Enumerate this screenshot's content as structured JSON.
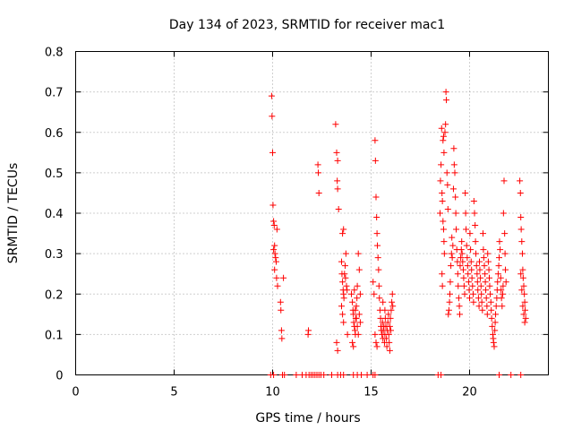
{
  "chart_data": {
    "type": "scatter",
    "title": "Day 134 of 2023, SRMTID for receiver mac1",
    "xlabel": "GPS time / hours",
    "ylabel": "SRMTID / TECUs",
    "xlim": [
      0,
      24
    ],
    "ylim": [
      0,
      0.8
    ],
    "xticks": [
      0,
      5,
      10,
      15,
      20
    ],
    "xtick_labels": [
      "0",
      "5",
      "10",
      "15",
      "20"
    ],
    "yticks": [
      0,
      0.1,
      0.2,
      0.3,
      0.4,
      0.5,
      0.6,
      0.7,
      0.8
    ],
    "ytick_labels": [
      "0",
      "0.1",
      "0.2",
      "0.3",
      "0.4",
      "0.5",
      "0.6",
      "0.7",
      "0.8"
    ],
    "grid": true,
    "marker": "+",
    "color": "#ff0000",
    "series": [
      {
        "name": "SRMTID",
        "points": [
          [
            9.95,
            0.69
          ],
          [
            9.97,
            0.64
          ],
          [
            10.0,
            0.55
          ],
          [
            10.02,
            0.42
          ],
          [
            10.05,
            0.38
          ],
          [
            10.08,
            0.37
          ],
          [
            10.1,
            0.32
          ],
          [
            10.12,
            0.3
          ],
          [
            10.15,
            0.29
          ],
          [
            10.18,
            0.28
          ],
          [
            10.05,
            0.31
          ],
          [
            10.1,
            0.26
          ],
          [
            10.2,
            0.24
          ],
          [
            10.22,
            0.36
          ],
          [
            10.25,
            0.22
          ],
          [
            10.4,
            0.18
          ],
          [
            10.42,
            0.16
          ],
          [
            10.45,
            0.11
          ],
          [
            10.47,
            0.09
          ],
          [
            10.55,
            0.24
          ],
          [
            11.8,
            0.1
          ],
          [
            11.82,
            0.11
          ],
          [
            12.3,
            0.52
          ],
          [
            12.32,
            0.5
          ],
          [
            12.35,
            0.45
          ],
          [
            13.2,
            0.62
          ],
          [
            13.25,
            0.55
          ],
          [
            13.3,
            0.53
          ],
          [
            13.28,
            0.48
          ],
          [
            13.3,
            0.46
          ],
          [
            13.35,
            0.41
          ],
          [
            13.25,
            0.08
          ],
          [
            13.3,
            0.06
          ],
          [
            13.55,
            0.35
          ],
          [
            13.6,
            0.36
          ],
          [
            13.5,
            0.28
          ],
          [
            13.52,
            0.25
          ],
          [
            13.55,
            0.23
          ],
          [
            13.58,
            0.21
          ],
          [
            13.6,
            0.2
          ],
          [
            13.62,
            0.19
          ],
          [
            13.65,
            0.25
          ],
          [
            13.68,
            0.27
          ],
          [
            13.5,
            0.17
          ],
          [
            13.55,
            0.15
          ],
          [
            13.6,
            0.13
          ],
          [
            13.7,
            0.24
          ],
          [
            13.72,
            0.3
          ],
          [
            13.75,
            0.22
          ],
          [
            13.78,
            0.21
          ],
          [
            13.8,
            0.1
          ],
          [
            14.0,
            0.2
          ],
          [
            14.05,
            0.18
          ],
          [
            14.08,
            0.16
          ],
          [
            14.1,
            0.15
          ],
          [
            14.12,
            0.13
          ],
          [
            14.15,
            0.12
          ],
          [
            14.18,
            0.11
          ],
          [
            14.2,
            0.1
          ],
          [
            14.22,
            0.14
          ],
          [
            14.25,
            0.17
          ],
          [
            14.28,
            0.19
          ],
          [
            14.3,
            0.22
          ],
          [
            14.05,
            0.08
          ],
          [
            14.1,
            0.07
          ],
          [
            14.15,
            0.21
          ],
          [
            14.2,
            0.16
          ],
          [
            14.25,
            0.14
          ],
          [
            14.3,
            0.12
          ],
          [
            14.35,
            0.1
          ],
          [
            14.35,
            0.3
          ],
          [
            14.4,
            0.26
          ],
          [
            14.4,
            0.15
          ],
          [
            14.45,
            0.13
          ],
          [
            14.45,
            0.2
          ],
          [
            15.1,
            0.23
          ],
          [
            15.15,
            0.2
          ],
          [
            15.2,
            0.58
          ],
          [
            15.22,
            0.53
          ],
          [
            15.25,
            0.44
          ],
          [
            15.28,
            0.39
          ],
          [
            15.3,
            0.35
          ],
          [
            15.32,
            0.32
          ],
          [
            15.35,
            0.29
          ],
          [
            15.38,
            0.26
          ],
          [
            15.4,
            0.22
          ],
          [
            15.42,
            0.19
          ],
          [
            15.45,
            0.16
          ],
          [
            15.48,
            0.14
          ],
          [
            15.2,
            0.1
          ],
          [
            15.25,
            0.08
          ],
          [
            15.3,
            0.07
          ],
          [
            15.5,
            0.12
          ],
          [
            15.52,
            0.11
          ],
          [
            15.55,
            0.1
          ],
          [
            15.58,
            0.13
          ],
          [
            15.6,
            0.09
          ],
          [
            15.62,
            0.11
          ],
          [
            15.65,
            0.12
          ],
          [
            15.68,
            0.08
          ],
          [
            15.7,
            0.1
          ],
          [
            15.72,
            0.14
          ],
          [
            15.75,
            0.12
          ],
          [
            15.78,
            0.09
          ],
          [
            15.8,
            0.07
          ],
          [
            15.82,
            0.11
          ],
          [
            15.85,
            0.13
          ],
          [
            15.88,
            0.15
          ],
          [
            15.9,
            0.1
          ],
          [
            15.92,
            0.08
          ],
          [
            15.95,
            0.12
          ],
          [
            15.98,
            0.14
          ],
          [
            16.0,
            0.11
          ],
          [
            16.02,
            0.16
          ],
          [
            16.05,
            0.18
          ],
          [
            16.08,
            0.2
          ],
          [
            16.1,
            0.17
          ],
          [
            15.95,
            0.06
          ],
          [
            15.7,
            0.16
          ],
          [
            15.6,
            0.18
          ],
          [
            18.5,
            0.4
          ],
          [
            18.52,
            0.48
          ],
          [
            18.55,
            0.52
          ],
          [
            18.58,
            0.61
          ],
          [
            18.6,
            0.45
          ],
          [
            18.62,
            0.43
          ],
          [
            18.65,
            0.38
          ],
          [
            18.68,
            0.36
          ],
          [
            18.7,
            0.33
          ],
          [
            18.72,
            0.3
          ],
          [
            18.6,
            0.25
          ],
          [
            18.62,
            0.22
          ],
          [
            18.65,
            0.58
          ],
          [
            18.68,
            0.59
          ],
          [
            18.7,
            0.55
          ],
          [
            18.75,
            0.6
          ],
          [
            18.78,
            0.62
          ],
          [
            18.8,
            0.7
          ],
          [
            18.82,
            0.68
          ],
          [
            18.85,
            0.5
          ],
          [
            18.88,
            0.47
          ],
          [
            18.9,
            0.41
          ],
          [
            18.92,
            0.15
          ],
          [
            18.95,
            0.16
          ],
          [
            18.98,
            0.18
          ],
          [
            19.0,
            0.2
          ],
          [
            19.02,
            0.23
          ],
          [
            19.05,
            0.27
          ],
          [
            19.08,
            0.3
          ],
          [
            19.1,
            0.34
          ],
          [
            19.12,
            0.29
          ],
          [
            19.15,
            0.32
          ],
          [
            19.18,
            0.46
          ],
          [
            19.2,
            0.56
          ],
          [
            19.22,
            0.52
          ],
          [
            19.25,
            0.5
          ],
          [
            19.28,
            0.44
          ],
          [
            19.3,
            0.4
          ],
          [
            19.32,
            0.36
          ],
          [
            19.35,
            0.31
          ],
          [
            19.38,
            0.28
          ],
          [
            19.4,
            0.25
          ],
          [
            19.42,
            0.22
          ],
          [
            19.45,
            0.19
          ],
          [
            19.48,
            0.17
          ],
          [
            19.5,
            0.15
          ],
          [
            19.52,
            0.27
          ],
          [
            19.55,
            0.29
          ],
          [
            19.58,
            0.31
          ],
          [
            19.6,
            0.33
          ],
          [
            19.62,
            0.3
          ],
          [
            19.65,
            0.28
          ],
          [
            19.68,
            0.26
          ],
          [
            19.7,
            0.24
          ],
          [
            19.72,
            0.22
          ],
          [
            19.75,
            0.2
          ],
          [
            19.78,
            0.45
          ],
          [
            19.8,
            0.4
          ],
          [
            19.82,
            0.36
          ],
          [
            19.85,
            0.32
          ],
          [
            19.88,
            0.29
          ],
          [
            19.9,
            0.27
          ],
          [
            19.92,
            0.25
          ],
          [
            19.95,
            0.23
          ],
          [
            19.98,
            0.21
          ],
          [
            20.0,
            0.19
          ],
          [
            20.02,
            0.35
          ],
          [
            20.05,
            0.31
          ],
          [
            20.08,
            0.28
          ],
          [
            20.1,
            0.26
          ],
          [
            20.12,
            0.24
          ],
          [
            20.15,
            0.22
          ],
          [
            20.18,
            0.2
          ],
          [
            20.2,
            0.18
          ],
          [
            20.22,
            0.43
          ],
          [
            20.25,
            0.4
          ],
          [
            20.28,
            0.37
          ],
          [
            20.3,
            0.33
          ],
          [
            20.32,
            0.3
          ],
          [
            20.35,
            0.27
          ],
          [
            20.38,
            0.25
          ],
          [
            20.4,
            0.23
          ],
          [
            20.42,
            0.21
          ],
          [
            20.45,
            0.19
          ],
          [
            20.48,
            0.17
          ],
          [
            20.5,
            0.28
          ],
          [
            20.52,
            0.26
          ],
          [
            20.55,
            0.24
          ],
          [
            20.58,
            0.22
          ],
          [
            20.6,
            0.2
          ],
          [
            20.62,
            0.18
          ],
          [
            20.65,
            0.16
          ],
          [
            20.68,
            0.35
          ],
          [
            20.7,
            0.31
          ],
          [
            20.72,
            0.29
          ],
          [
            20.75,
            0.27
          ],
          [
            20.78,
            0.25
          ],
          [
            20.8,
            0.23
          ],
          [
            20.82,
            0.21
          ],
          [
            20.85,
            0.19
          ],
          [
            20.88,
            0.17
          ],
          [
            20.9,
            0.15
          ],
          [
            20.92,
            0.3
          ],
          [
            20.95,
            0.28
          ],
          [
            20.98,
            0.26
          ],
          [
            21.0,
            0.24
          ],
          [
            21.02,
            0.22
          ],
          [
            21.05,
            0.2
          ],
          [
            21.08,
            0.18
          ],
          [
            21.1,
            0.16
          ],
          [
            21.12,
            0.14
          ],
          [
            21.15,
            0.12
          ],
          [
            21.18,
            0.1
          ],
          [
            21.2,
            0.09
          ],
          [
            21.22,
            0.08
          ],
          [
            21.25,
            0.07
          ],
          [
            21.28,
            0.11
          ],
          [
            21.3,
            0.13
          ],
          [
            21.32,
            0.15
          ],
          [
            21.35,
            0.17
          ],
          [
            21.38,
            0.19
          ],
          [
            21.4,
            0.21
          ],
          [
            21.42,
            0.23
          ],
          [
            21.45,
            0.25
          ],
          [
            21.48,
            0.27
          ],
          [
            21.5,
            0.29
          ],
          [
            21.52,
            0.33
          ],
          [
            21.55,
            0.31
          ],
          [
            21.58,
            0.24
          ],
          [
            21.6,
            0.21
          ],
          [
            21.62,
            0.19
          ],
          [
            21.65,
            0.17
          ],
          [
            21.68,
            0.2
          ],
          [
            21.7,
            0.22
          ],
          [
            21.72,
            0.4
          ],
          [
            21.75,
            0.48
          ],
          [
            21.78,
            0.35
          ],
          [
            21.8,
            0.3
          ],
          [
            21.82,
            0.26
          ],
          [
            21.85,
            0.23
          ],
          [
            22.55,
            0.48
          ],
          [
            22.58,
            0.45
          ],
          [
            22.6,
            0.39
          ],
          [
            22.62,
            0.36
          ],
          [
            22.65,
            0.33
          ],
          [
            22.68,
            0.3
          ],
          [
            22.7,
            0.26
          ],
          [
            22.72,
            0.24
          ],
          [
            22.75,
            0.22
          ],
          [
            22.78,
            0.2
          ],
          [
            22.8,
            0.18
          ],
          [
            22.82,
            0.16
          ],
          [
            22.85,
            0.14
          ],
          [
            22.6,
            0.25
          ],
          [
            22.65,
            0.21
          ],
          [
            22.7,
            0.17
          ],
          [
            22.75,
            0.15
          ],
          [
            22.8,
            0.13
          ]
        ]
      }
    ],
    "zero_points_x": [
      9.9,
      10.05,
      10.5,
      10.6,
      11.2,
      11.5,
      11.7,
      11.85,
      11.95,
      12.05,
      12.15,
      12.25,
      12.35,
      12.45,
      12.6,
      13.0,
      13.3,
      13.45,
      13.6,
      14.1,
      14.3,
      14.5,
      14.8,
      15.1,
      15.2,
      18.4,
      18.55,
      21.5,
      22.1,
      22.6
    ]
  }
}
